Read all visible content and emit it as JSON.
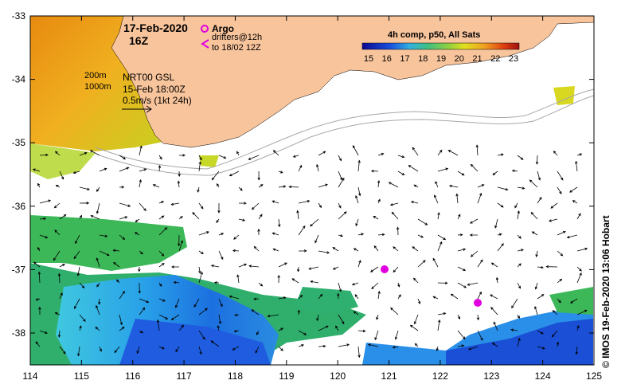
{
  "map": {
    "date_line": "17-Feb-2020",
    "time_line": "16Z",
    "legend": {
      "argo_label": "Argo",
      "drifters_line1": "drifters@12h",
      "drifters_line2": "to 18/02 12Z",
      "isobath_200": "200m",
      "isobath_1000": "1000m",
      "altimetry_line1": "NRT00 GSL",
      "altimetry_line2": "15-Feb 18:00Z",
      "scale_line": "0.5m/s (1kt 24h)"
    },
    "colorbar": {
      "title": "4h comp, p50, All Sats",
      "ticks": [
        "15",
        "16",
        "17",
        "18",
        "19",
        "20",
        "21",
        "22",
        "23"
      ]
    },
    "lon_ticks": [
      "114",
      "115",
      "116",
      "117",
      "118",
      "119",
      "120",
      "121",
      "122",
      "123",
      "124",
      "125"
    ],
    "lat_ticks": [
      "-33",
      "-34",
      "-35",
      "-36",
      "-37",
      "-38"
    ],
    "credit": "© IMOS 19-Feb-2020 13:06 Hobart",
    "colors": {
      "land": "#f8c49c",
      "sst_cold": "#1c4fd8",
      "sst_mid": "#3cc060",
      "sst_warm": "#e89018",
      "argo": "#e000e0"
    }
  }
}
